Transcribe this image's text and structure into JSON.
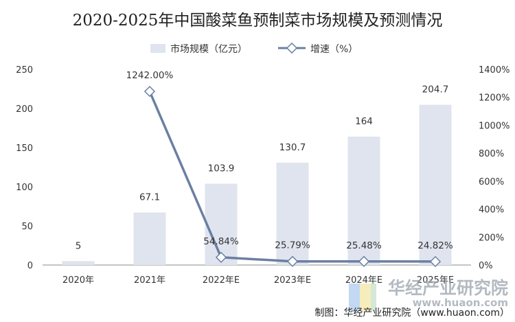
{
  "chart_data": {
    "type": "bar",
    "title": "2020-2025年中国酸菜鱼预制菜市场规模及预测情况",
    "categories": [
      "2020年",
      "2021年",
      "2022年E",
      "2023年E",
      "2024年E",
      "2025年E"
    ],
    "series": [
      {
        "name": "市场规模（亿元）",
        "type": "bar",
        "axis": "left",
        "values": [
          5,
          67.1,
          103.9,
          130.7,
          164,
          204.7
        ],
        "labels": [
          "5",
          "67.1",
          "103.9",
          "130.7",
          "164",
          "204.7"
        ],
        "color": "#dfe4ee"
      },
      {
        "name": "增速（%）",
        "type": "line",
        "axis": "right",
        "values": [
          null,
          1242.0,
          54.84,
          25.79,
          25.48,
          24.82
        ],
        "labels": [
          "",
          "1242.00%",
          "54.84%",
          "25.79%",
          "25.48%",
          "24.82%"
        ],
        "color": "#6b7fa3"
      }
    ],
    "y_left": {
      "min": 0,
      "max": 250,
      "ticks": [
        "0",
        "50",
        "100",
        "150",
        "200",
        "250"
      ]
    },
    "y_right": {
      "min": 0,
      "max": 1400,
      "ticks": [
        "0%",
        "200%",
        "400%",
        "600%",
        "800%",
        "1000%",
        "1200%",
        "1400%"
      ]
    },
    "grid": false,
    "legend_position": "top"
  },
  "footer": {
    "credit": "制图：华经产业研究院（www.huaon.com）"
  },
  "watermark": {
    "name": "华经产业研究院",
    "url": "www.huaon.com"
  }
}
